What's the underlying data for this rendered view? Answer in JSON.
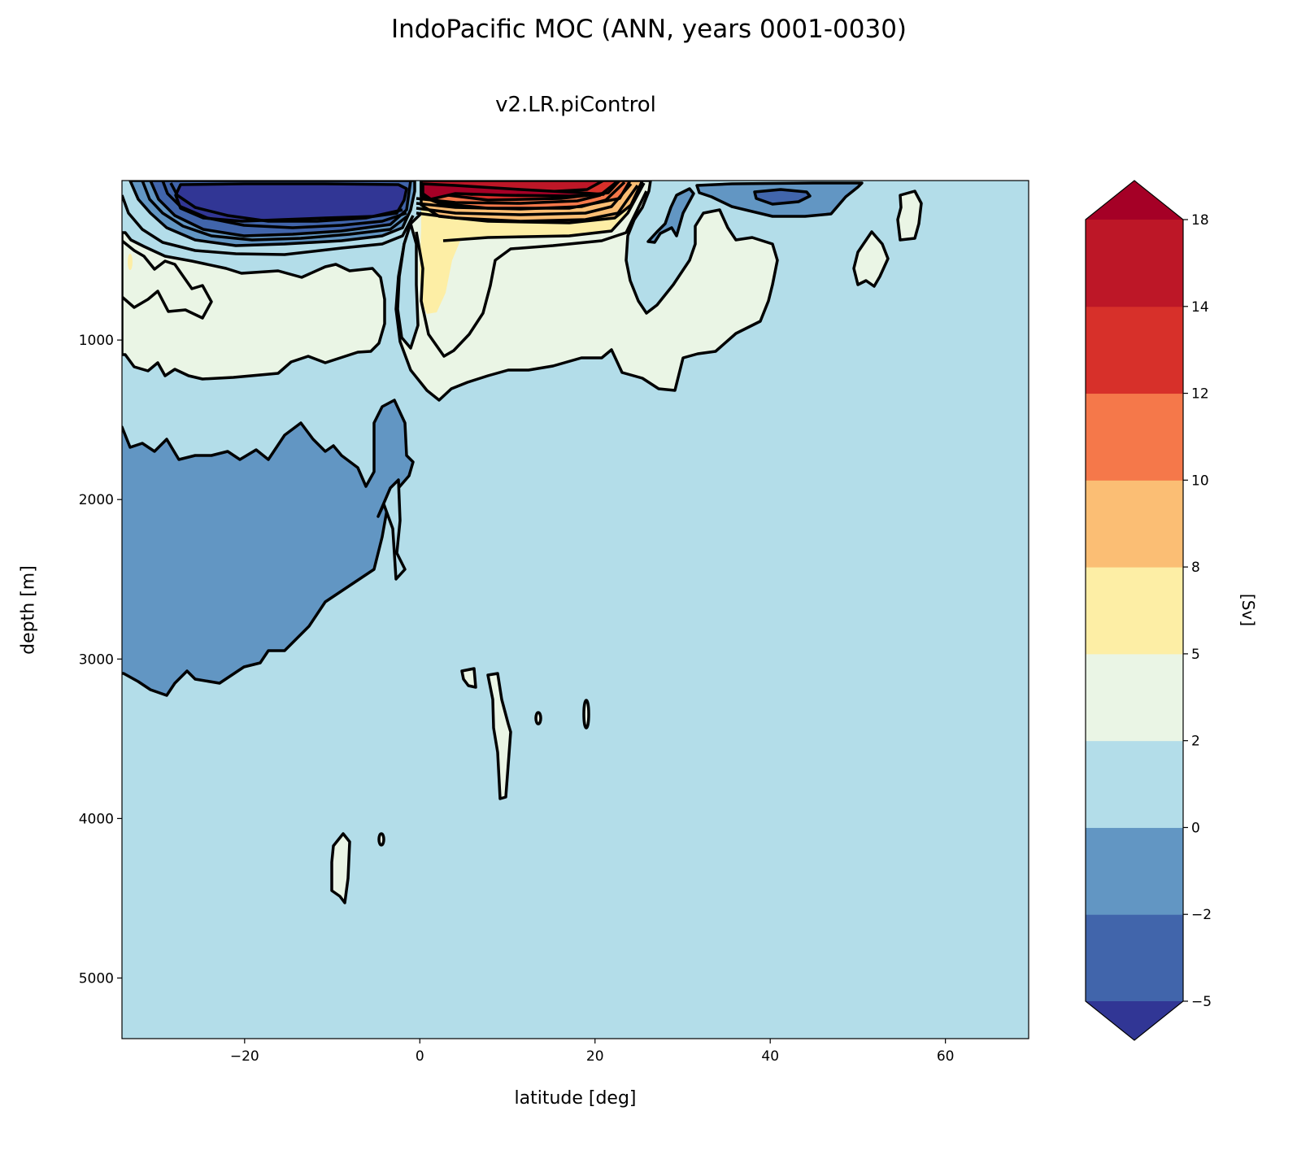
{
  "title": "IndoPacific MOC (ANN, years 0001-0030)",
  "subtitle": "v2.LR.piControl",
  "chart_data": {
    "type": "contourf",
    "title": "IndoPacific MOC (ANN, years 0001-0030)",
    "subtitle": "v2.LR.piControl",
    "xlabel": "latitude [deg]",
    "ylabel": "depth [m]",
    "colorbar_label": "[Sv]",
    "xlim": [
      -34,
      69.5
    ],
    "ylim": [
      5380,
      0
    ],
    "y_inverted": true,
    "x_ticks": [
      -20,
      0,
      20,
      40,
      60
    ],
    "x_tick_labels": [
      "−20",
      "0",
      "20",
      "40",
      "60"
    ],
    "y_ticks": [
      1000,
      2000,
      3000,
      4000,
      5000
    ],
    "y_tick_labels": [
      "1000",
      "2000",
      "3000",
      "4000",
      "5000"
    ],
    "levels": [
      -5,
      -2,
      0,
      2,
      5,
      8,
      10,
      12,
      14,
      18
    ],
    "level_labels": [
      "−5",
      "−2",
      "0",
      "2",
      "5",
      "8",
      "10",
      "12",
      "14",
      "18"
    ],
    "extend": "both",
    "colors": {
      "under": "#313695",
      "bands": [
        "#4165ab",
        "#6296c3",
        "#b3dde9",
        "#eaf5e5",
        "#fdeea5",
        "#fbbe74",
        "#f5784a",
        "#d7302a",
        "#bd1727"
      ],
      "over": "#a50026"
    },
    "contour_line_color": "#000000",
    "features": [
      "strong negative cell (< -5 Sv) near surface, 30S-0",
      "strong positive cell (> 18 Sv) near surface, 0-25N",
      "weak negative deep cell (-2 to 0 Sv) 34S-0, 1400-3200 m"
    ]
  }
}
